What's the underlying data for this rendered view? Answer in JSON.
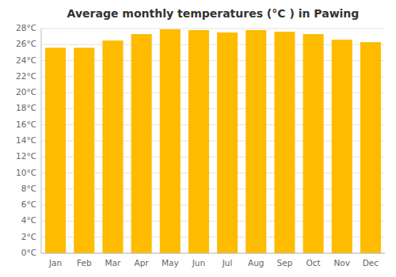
{
  "chart_data": {
    "type": "bar",
    "title": "Average monthly temperatures (°C ) in Pawing",
    "categories": [
      "Jan",
      "Feb",
      "Mar",
      "Apr",
      "May",
      "Jun",
      "Jul",
      "Aug",
      "Sep",
      "Oct",
      "Nov",
      "Dec"
    ],
    "values": [
      25.6,
      25.6,
      26.5,
      27.3,
      27.9,
      27.8,
      27.5,
      27.8,
      27.6,
      27.3,
      26.6,
      26.3
    ],
    "color": "#FFBB00",
    "ylim": [
      0,
      28
    ],
    "yticks": [
      {
        "value": 0,
        "label": "0°C"
      },
      {
        "value": 2,
        "label": "2°C"
      },
      {
        "value": 4,
        "label": "4°C"
      },
      {
        "value": 6,
        "label": "6°C"
      },
      {
        "value": 8,
        "label": "8°C"
      },
      {
        "value": 10,
        "label": "10°C"
      },
      {
        "value": 12,
        "label": "12°C"
      },
      {
        "value": 14,
        "label": "14°C"
      },
      {
        "value": 16,
        "label": "16°C"
      },
      {
        "value": 18,
        "label": "18°C"
      },
      {
        "value": 20,
        "label": "20°C"
      },
      {
        "value": 22,
        "label": "22°C"
      },
      {
        "value": 24,
        "label": "24°C"
      },
      {
        "value": 26,
        "label": "26°C"
      },
      {
        "value": 28,
        "label": "28°C"
      }
    ],
    "grid": true
  }
}
